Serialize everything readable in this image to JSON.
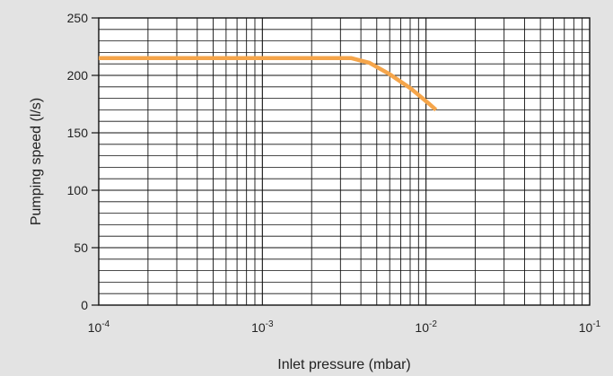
{
  "chart_data": {
    "type": "line",
    "xlabel": "Inlet pressure (mbar)",
    "ylabel": "Pumping speed (l/s)",
    "x_scale": "log",
    "xlim": [
      0.0001,
      0.1
    ],
    "ylim": [
      0,
      250
    ],
    "grid": true,
    "x_ticks": [
      {
        "value": 0.0001,
        "base": "10",
        "exp": "-4"
      },
      {
        "value": 0.001,
        "base": "10",
        "exp": "-3"
      },
      {
        "value": 0.01,
        "base": "10",
        "exp": "-2"
      },
      {
        "value": 0.1,
        "base": "10",
        "exp": "-1"
      }
    ],
    "y_ticks": [
      {
        "value": 0,
        "label": "0"
      },
      {
        "value": 50,
        "label": "50"
      },
      {
        "value": 100,
        "label": "100"
      },
      {
        "value": 150,
        "label": "150"
      },
      {
        "value": 200,
        "label": "200"
      },
      {
        "value": 250,
        "label": "250"
      }
    ],
    "y_minor_step": 10,
    "series": [
      {
        "color": "#f5a54a",
        "points": [
          [
            0.0001,
            215
          ],
          [
            0.0035,
            215
          ],
          [
            0.0045,
            211
          ],
          [
            0.006,
            201
          ],
          [
            0.008,
            189
          ],
          [
            0.0105,
            175
          ],
          [
            0.0115,
            170
          ]
        ]
      }
    ]
  }
}
